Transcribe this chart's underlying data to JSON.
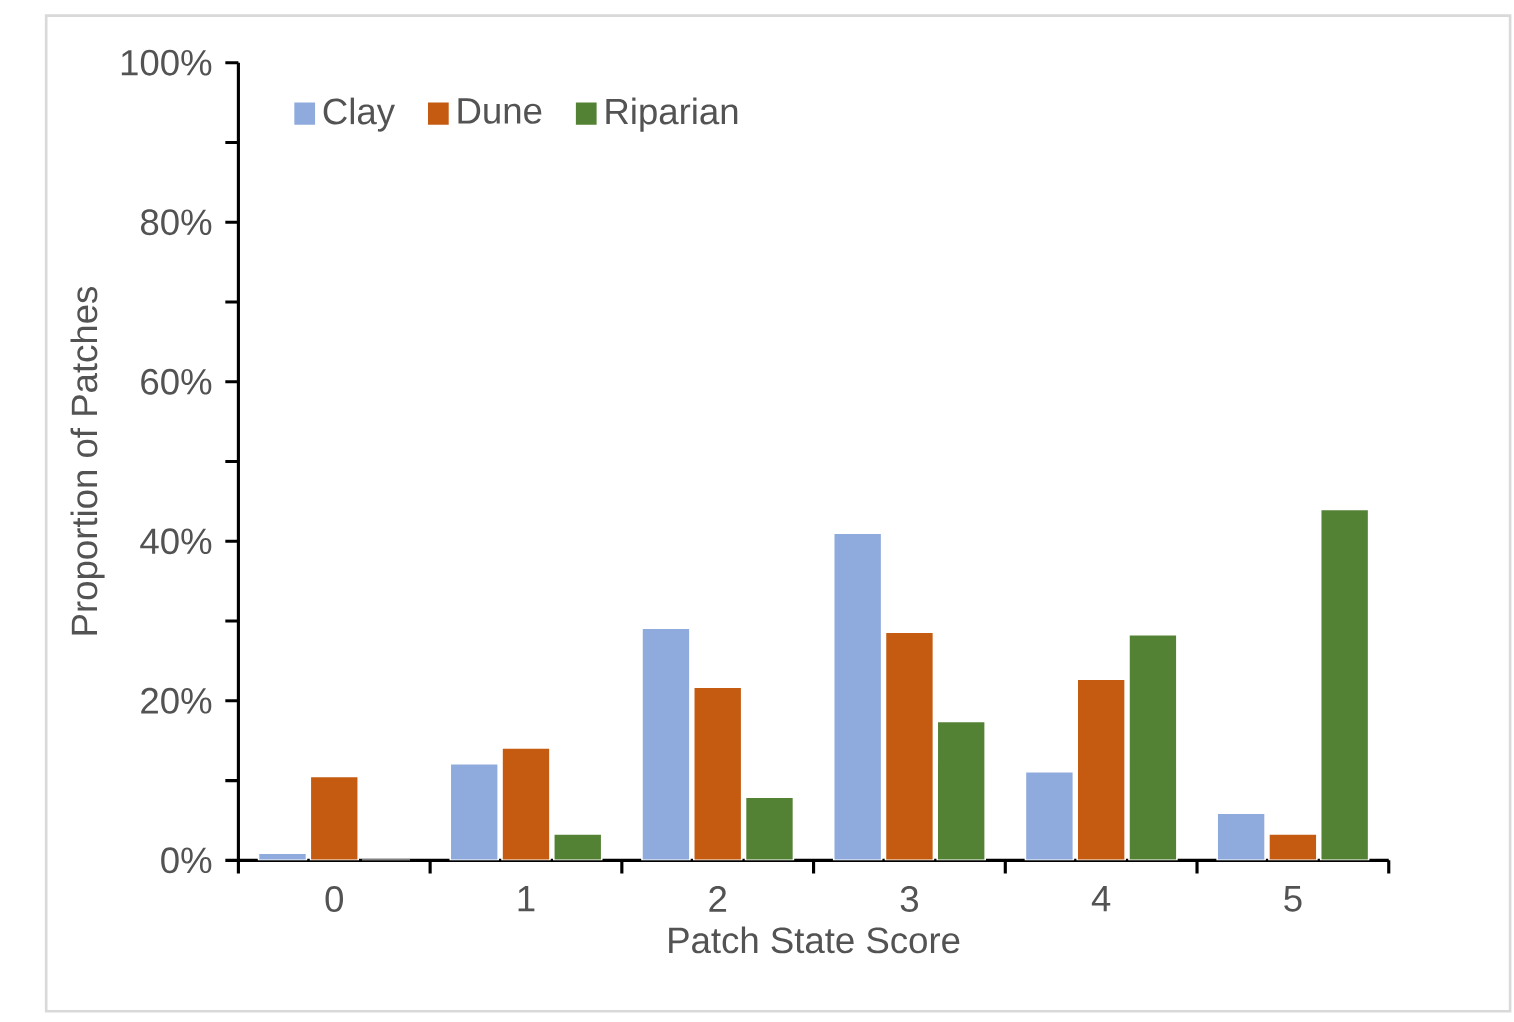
{
  "chart_data": {
    "type": "bar",
    "xlabel": "Patch State Score",
    "ylabel": "Proportion of Patches",
    "categories": [
      "0",
      "1",
      "2",
      "3",
      "4",
      "5"
    ],
    "series": [
      {
        "name": "Clay",
        "color": "#8faadc",
        "values": [
          0.9,
          12.1,
          29.1,
          41.0,
          11.1,
          5.9
        ]
      },
      {
        "name": "Dune",
        "color": "#c55a11",
        "values": [
          10.5,
          14.1,
          21.7,
          28.6,
          22.7,
          3.3
        ]
      },
      {
        "name": "Riparian",
        "color": "#548235",
        "values": [
          0,
          3.3,
          7.9,
          17.4,
          28.3,
          44.0
        ]
      }
    ],
    "ylim": [
      0,
      100
    ],
    "yticks": [
      {
        "value": 0,
        "label": "0%"
      },
      {
        "value": 20,
        "label": "20%"
      },
      {
        "value": 40,
        "label": "40%"
      },
      {
        "value": 60,
        "label": "60%"
      },
      {
        "value": 80,
        "label": "80%"
      },
      {
        "value": 100,
        "label": "100%"
      }
    ],
    "grid": false,
    "legend": "top left"
  }
}
